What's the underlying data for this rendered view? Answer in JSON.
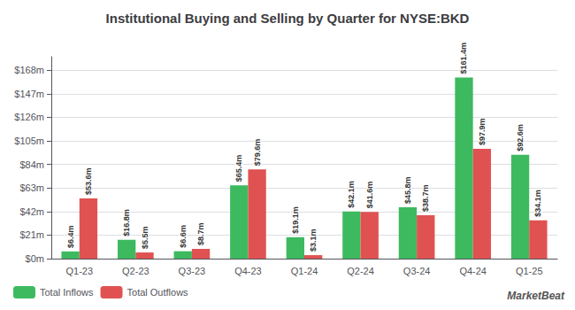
{
  "chart_data": {
    "type": "bar",
    "title": "Institutional Buying and Selling by Quarter for NYSE:BKD",
    "categories": [
      "Q1-23",
      "Q2-23",
      "Q3-23",
      "Q4-23",
      "Q1-24",
      "Q2-24",
      "Q3-24",
      "Q4-24",
      "Q1-25"
    ],
    "series": [
      {
        "name": "Total Inflows",
        "color": "#3dba5f",
        "values": [
          6.4,
          16.8,
          6.6,
          65.4,
          19.1,
          42.1,
          45.8,
          161.4,
          92.6
        ],
        "value_labels": [
          "$6.4m",
          "$16.8m",
          "$6.6m",
          "$65.4m",
          "$19.1m",
          "$42.1m",
          "$45.8m",
          "$161.4m",
          "$92.6m"
        ]
      },
      {
        "name": "Total Outflows",
        "color": "#e05252",
        "values": [
          53.6,
          5.5,
          8.7,
          79.6,
          3.1,
          41.6,
          38.7,
          97.9,
          34.1
        ],
        "value_labels": [
          "$53.6m",
          "$5.5m",
          "$8.7m",
          "$79.6m",
          "$3.1m",
          "$41.6m",
          "$38.7m",
          "$97.9m",
          "$34.1m"
        ]
      }
    ],
    "ylim": [
      0,
      180
    ],
    "yticks": [
      {
        "value": 0,
        "label": "$0m"
      },
      {
        "value": 21,
        "label": "$21m"
      },
      {
        "value": 42,
        "label": "$42m"
      },
      {
        "value": 63,
        "label": "$63m"
      },
      {
        "value": 84,
        "label": "$84m"
      },
      {
        "value": 105,
        "label": "$105m"
      },
      {
        "value": 126,
        "label": "$126m"
      },
      {
        "value": 147,
        "label": "$147m"
      },
      {
        "value": 168,
        "label": "$168m"
      }
    ],
    "grid": true,
    "legend": "lower left",
    "data_labels": true,
    "annotations": [
      "MarketBeat"
    ]
  }
}
